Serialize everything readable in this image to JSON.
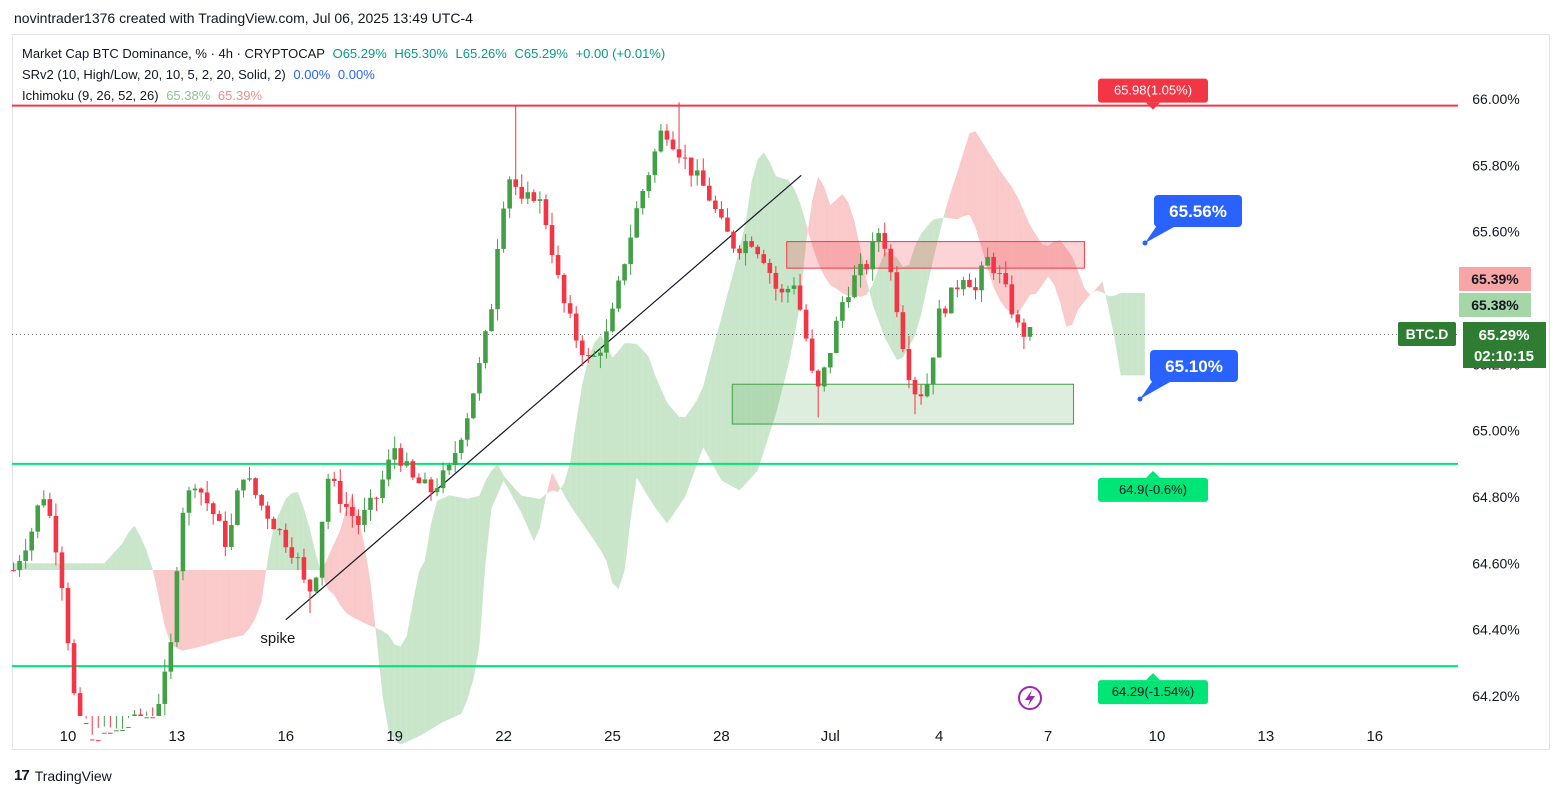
{
  "caption": "novintrader1376 created with TradingView.com, Jul 06, 2025 13:49 UTC-4",
  "legend": {
    "symbol": "Market Cap BTC Dominance, % · 4h · CRYPTOCAP",
    "open": "O65.29%",
    "high": "H65.30%",
    "low": "L65.26%",
    "close": "C65.29%",
    "change": "+0.00 (+0.01%)",
    "srv2": "SRv2 (10, High/Low, 20, 10, 5, 2, 20, Solid, 2)",
    "srv2_v1": "0.00%",
    "srv2_v2": "0.00%",
    "ichimoku": "Ichimoku (9, 26, 52, 26)",
    "ichi_v1": "65.38%",
    "ichi_v2": "65.39%"
  },
  "footer": {
    "logo": "17",
    "brand": "TradingView"
  },
  "colors": {
    "up": "#43a047",
    "down": "#f23645",
    "cloud_up": "#a5d6a7",
    "cloud_down": "#f7a5a5",
    "hline_green": "#00e676",
    "hline_red": "#f23645",
    "label_blue": "#2962ff",
    "last_price": "#2e7d32"
  },
  "chart_data": {
    "type": "candlestick",
    "title": "Market Cap BTC Dominance, % · 4h · CRYPTOCAP",
    "y_axis": {
      "min": 64.12,
      "max": 66.12,
      "ticks": [
        "66.00%",
        "65.80%",
        "65.60%",
        "65.40%",
        "65.20%",
        "65.00%",
        "64.80%",
        "64.60%",
        "64.40%",
        "64.20%"
      ]
    },
    "x_axis": {
      "ticks": [
        "10",
        "13",
        "16",
        "19",
        "22",
        "25",
        "28",
        "Jul",
        "4",
        "7",
        "10",
        "13",
        "16"
      ],
      "tick_days": [
        10,
        13,
        16,
        19,
        22,
        25,
        28,
        31,
        34,
        37,
        40,
        43,
        46
      ]
    },
    "x_domain_days": [
      8.5,
      47.65
    ],
    "closes": [
      65.1,
      65.05,
      65.03,
      65.12,
      65.2,
      65.2,
      65.31,
      65.25,
      65.3,
      65.26,
      65.23,
      65.24,
      65.29
    ],
    "last_price": {
      "label": "BTC.D",
      "value": "65.29%",
      "countdown": "02:10:15",
      "numeric": 65.29
    },
    "axis_badges": [
      {
        "text": "65.39%",
        "value": 65.39,
        "kind": "red"
      },
      {
        "text": "65.38%",
        "value": 65.38,
        "kind": "green"
      }
    ],
    "horizontal_lines": [
      {
        "value": 65.98,
        "color": "red",
        "label": "65.98(1.05%)"
      },
      {
        "value": 64.9,
        "color": "green",
        "label": "64.9(-0.6%)"
      },
      {
        "value": 64.29,
        "color": "green",
        "label": "64.29(-1.54%)"
      }
    ],
    "callouts": [
      {
        "text": "65.56%",
        "price": 65.56,
        "day": 38.1
      },
      {
        "text": "65.10%",
        "price": 65.1,
        "day": 37.6
      }
    ],
    "zones": [
      {
        "kind": "resistance",
        "price_from": 65.49,
        "price_to": 65.57,
        "day_from": 29.8,
        "day_to": 38.0
      },
      {
        "kind": "support",
        "price_from": 65.02,
        "price_to": 65.14,
        "day_from": 28.3,
        "day_to": 37.7
      }
    ],
    "trendline": {
      "from": {
        "day": 16.0,
        "price": 64.43
      },
      "to": {
        "day": 30.2,
        "price": 65.77
      }
    },
    "annotations": [
      {
        "text": "spike",
        "day": 15.3,
        "price": 64.36
      }
    ]
  }
}
